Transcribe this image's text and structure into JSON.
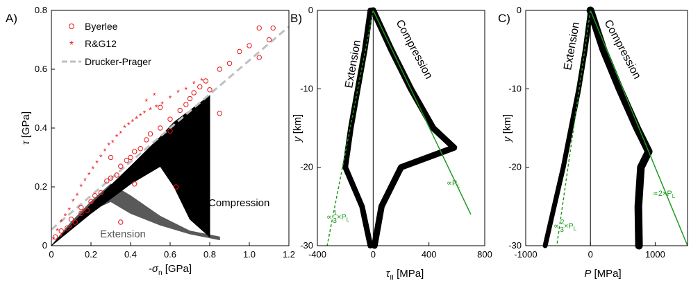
{
  "figure": {
    "colors": {
      "axis": "#000000",
      "red": "#e8191c",
      "dp": "#bfbfbf",
      "green": "#1e9a1e",
      "gray": "#595959",
      "black": "#000000"
    }
  },
  "chart_data": [
    {
      "type": "scatter",
      "panel_label": "A)",
      "xlabel": "-σn [GPa]",
      "xlabel_main": "-σ",
      "xlabel_sub": "n",
      "xlabel_unit": " [GPa]",
      "ylabel": "τ [GPa]",
      "ylabel_main": "τ",
      "ylabel_unit": " [GPa]",
      "xlim": [
        0,
        1.2
      ],
      "ylim": [
        0,
        0.8
      ],
      "xticks": [
        "0",
        "0.2",
        "0.4",
        "0.6",
        "0.8",
        "1.0",
        "1.2"
      ],
      "yticks": [
        "0",
        "0.2",
        "0.4",
        "0.6",
        "0.8"
      ],
      "xtick_values": [
        0,
        0.2,
        0.4,
        0.6,
        0.8,
        1.0,
        1.2
      ],
      "ytick_values": [
        0,
        0.2,
        0.4,
        0.6,
        0.8
      ],
      "legend": [
        "Byerlee",
        "R&G12",
        "Drucker-Prager"
      ],
      "legend_position": "top-left",
      "annotations": [
        "Compression",
        "Extension"
      ],
      "series": [
        {
          "name": "Byerlee",
          "marker": "open-circle",
          "x": [
            0.02,
            0.05,
            0.08,
            0.1,
            0.12,
            0.15,
            0.18,
            0.2,
            0.22,
            0.25,
            0.28,
            0.3,
            0.33,
            0.35,
            0.38,
            0.4,
            0.42,
            0.45,
            0.48,
            0.5,
            0.55,
            0.6,
            0.65,
            0.68,
            0.7,
            0.72,
            0.75,
            0.78,
            0.8,
            0.85,
            0.9,
            0.95,
            1.0,
            1.05,
            1.1,
            1.12,
            0.35,
            0.42,
            0.63,
            0.85,
            0.15,
            0.3,
            0.6,
            1.05,
            0.55
          ],
          "y": [
            0.03,
            0.05,
            0.06,
            0.09,
            0.08,
            0.13,
            0.12,
            0.15,
            0.17,
            0.18,
            0.22,
            0.23,
            0.24,
            0.27,
            0.29,
            0.3,
            0.32,
            0.33,
            0.36,
            0.38,
            0.4,
            0.43,
            0.46,
            0.48,
            0.5,
            0.52,
            0.54,
            0.56,
            0.53,
            0.6,
            0.62,
            0.66,
            0.68,
            0.64,
            0.7,
            0.74,
            0.08,
            0.21,
            0.2,
            0.45,
            0.11,
            0.3,
            0.39,
            0.74,
            0.47
          ]
        },
        {
          "name": "R&G12",
          "marker": "asterisk",
          "x": [
            0.01,
            0.03,
            0.05,
            0.07,
            0.09,
            0.11,
            0.13,
            0.15,
            0.17,
            0.19,
            0.21,
            0.23,
            0.25,
            0.27,
            0.29,
            0.31,
            0.33,
            0.35,
            0.37,
            0.39,
            0.41,
            0.43,
            0.45,
            0.47,
            0.5,
            0.53,
            0.56,
            0.6,
            0.64,
            0.68,
            0.72,
            0.76,
            0.48,
            0.52,
            0.05,
            0.1,
            0.2
          ],
          "y": [
            0.02,
            0.05,
            0.08,
            0.1,
            0.12,
            0.15,
            0.17,
            0.2,
            0.22,
            0.24,
            0.26,
            0.28,
            0.3,
            0.32,
            0.34,
            0.35,
            0.37,
            0.38,
            0.4,
            0.41,
            0.42,
            0.43,
            0.44,
            0.45,
            0.46,
            0.47,
            0.48,
            0.5,
            0.52,
            0.53,
            0.55,
            0.56,
            0.49,
            0.51,
            0.03,
            0.06,
            0.14
          ]
        },
        {
          "name": "Drucker-Prager",
          "type": "line",
          "x": [
            0,
            1.2
          ],
          "y": [
            0.055,
            0.745
          ]
        }
      ],
      "compression_band": {
        "x": [
          0.0,
          0.2,
          0.4,
          0.55,
          0.62,
          0.7,
          0.8
        ],
        "upper": [
          0.0,
          0.14,
          0.27,
          0.37,
          0.42,
          0.46,
          0.51
        ],
        "lower": [
          0.0,
          0.11,
          0.21,
          0.27,
          0.2,
          0.09,
          0.03
        ]
      },
      "extension_band": {
        "x": [
          0.0,
          0.1,
          0.2,
          0.3,
          0.4,
          0.55,
          0.7,
          0.85
        ],
        "upper": [
          0.0,
          0.08,
          0.15,
          0.21,
          0.17,
          0.1,
          0.05,
          0.03
        ],
        "lower": [
          0.0,
          0.07,
          0.12,
          0.15,
          0.11,
          0.07,
          0.04,
          0.02
        ]
      }
    },
    {
      "type": "line",
      "panel_label": "B)",
      "xlabel": "τII [MPa]",
      "xlabel_main": "τ",
      "xlabel_sub": "II",
      "xlabel_unit": " [MPa]",
      "ylabel": "y [km]",
      "ylabel_main": "y",
      "ylabel_unit": " [km]",
      "xlim": [
        -400,
        800
      ],
      "ylim": [
        -30,
        0
      ],
      "xticks": [
        "-400",
        "0",
        "400",
        "800"
      ],
      "yticks": [
        "0",
        "-10",
        "-20",
        "-30"
      ],
      "xtick_values": [
        -400,
        0,
        400,
        800
      ],
      "ytick_values": [
        0,
        -10,
        -20,
        -30
      ],
      "labels": [
        "Extension",
        "Compression"
      ],
      "green_labels": {
        "compression": "∝P",
        "compression_sub": "L",
        "extension_prefix": "∝",
        "extension_num": "1",
        "extension_den": "3",
        "extension_suffix": "×P",
        "extension_sub": "L"
      },
      "compression_profile": {
        "y": [
          0,
          -5,
          -10,
          -15,
          -17.5,
          -20,
          -25,
          -30
        ],
        "x": [
          0,
          130,
          270,
          430,
          580,
          200,
          60,
          10
        ]
      },
      "extension_profile": {
        "y": [
          0,
          -5,
          -10,
          -15,
          -20,
          -25,
          -30
        ],
        "x": [
          -20,
          -60,
          -110,
          -160,
          -200,
          -80,
          -20
        ]
      },
      "reference_lines": [
        {
          "name": "∝PL",
          "style": "solid",
          "x": [
            0,
            700
          ],
          "y": [
            0,
            -26
          ]
        },
        {
          "name": "∝1/3×PL",
          "style": "dashed",
          "x": [
            0,
            -330
          ],
          "y": [
            0,
            -30
          ]
        }
      ]
    },
    {
      "type": "line",
      "panel_label": "C)",
      "xlabel": "P [MPa]",
      "xlabel_main": "P",
      "xlabel_unit": " [MPa]",
      "ylabel": "y [km]",
      "ylabel_main": "y",
      "ylabel_unit": " [km]",
      "xlim": [
        -1000,
        1500
      ],
      "ylim": [
        -30,
        0
      ],
      "xticks": [
        "-1000",
        "0",
        "1000"
      ],
      "yticks": [
        "0",
        "-10",
        "-20",
        "-30"
      ],
      "xtick_values": [
        -1000,
        0,
        1000
      ],
      "ytick_values": [
        0,
        -10,
        -20,
        -30
      ],
      "labels": [
        "Extension",
        "Compression"
      ],
      "green_labels": {
        "compression": "∝2×P",
        "compression_sub": "L",
        "extension_prefix": "∝",
        "extension_num": "2",
        "extension_den": "3",
        "extension_suffix": "×P",
        "extension_sub": "L"
      },
      "compression_profile": {
        "y": [
          0,
          -5,
          -10,
          -15,
          -18,
          -20,
          -25,
          -30
        ],
        "x": [
          0,
          200,
          450,
          720,
          900,
          780,
          740,
          750
        ]
      },
      "extension_profile": {
        "y": [
          0,
          -5,
          -10,
          -15,
          -20,
          -25,
          -30
        ],
        "x": [
          0,
          -80,
          -180,
          -300,
          -420,
          -560,
          -700
        ]
      },
      "reference_lines": [
        {
          "name": "∝2×PL",
          "style": "solid",
          "x": [
            0,
            1500
          ],
          "y": [
            0,
            -30
          ]
        },
        {
          "name": "∝2/3×PL",
          "style": "dashed",
          "x": [
            0,
            -520
          ],
          "y": [
            0,
            -30
          ]
        }
      ]
    }
  ]
}
